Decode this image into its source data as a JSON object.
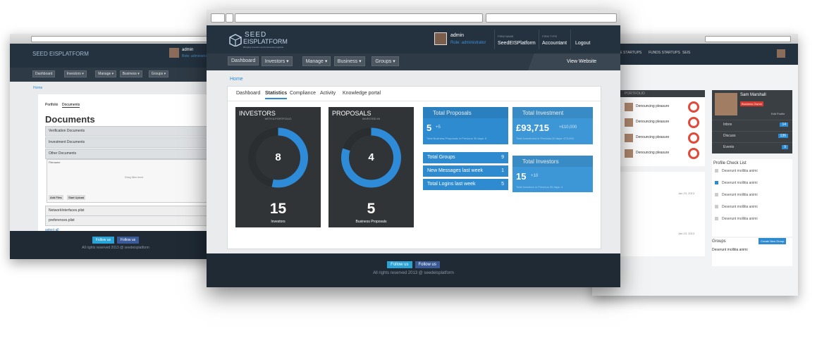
{
  "left": {
    "logo": "SEED EISPLATFORM",
    "user": "admin",
    "role": "Role: administrator",
    "nav": [
      "Dashboard",
      "Investors",
      "Manage",
      "Business",
      "Groups"
    ],
    "breadcrumb": "Home",
    "tabs": [
      "Portfolio",
      "Documents"
    ],
    "heading": "Documents",
    "sections": [
      "Verification Documents",
      "Investment Documents",
      "Other Documents"
    ],
    "filename": "Filename",
    "drop": "Drag files here.",
    "add_files": "Add Files",
    "start_upload": "Start Upload",
    "files": [
      "NetworkInterfaces.plist",
      "preferences.plist"
    ],
    "select_all": "select all",
    "footer": {
      "twitter": "Follow us",
      "facebook": "Follow us",
      "copyright": "All rights reserved 2013 @ seedeisplatform"
    }
  },
  "right": {
    "nav": [
      "SE STARTUPS",
      "FUNDS STARTUPS",
      "SEIS"
    ],
    "portfolio": "PORTFOLIO",
    "items": [
      "Denouncing pleasure",
      "Denouncing pleasure",
      "Denouncing pleasure",
      "Denouncing pleasure"
    ],
    "profile": {
      "name": "Sam Marshall",
      "role": "Business Owner",
      "edit": "Edit Profile",
      "links": [
        {
          "label": "Inbox",
          "count": "14"
        },
        {
          "label": "Discuss",
          "count": "136"
        },
        {
          "label": "Events",
          "count": "9"
        }
      ]
    },
    "checklist": {
      "title": "Profile Check List",
      "items": [
        "Deserunt mollitia animi",
        "Deserunt mollitia animi",
        "Deserunt mollitia animi",
        "Deserunt mollitia animi",
        "Deserunt mollitia animi"
      ]
    },
    "groups": {
      "title": "Groups",
      "button": "Create New Group",
      "item": "Deserunt mollitia animi"
    },
    "dates": [
      "Jan 23, 2013",
      "Jan 23, 2013"
    ]
  },
  "main": {
    "header": {
      "logo_top": "SEED",
      "logo_bottom": "EISPLATFORM",
      "tagline": "Bringing investors and businesses together",
      "user": "admin",
      "role": "Role: administrator",
      "firm_name_label": "FIRM NAME",
      "firm_name": "SeedEISPlatform",
      "firm_type_label": "FIRM TYPE",
      "firm_type": "Accountant",
      "logout": "Logout"
    },
    "nav": [
      "Dashboard",
      "Investors",
      "Manage",
      "Business",
      "Groups"
    ],
    "view_website": "View Website",
    "breadcrumb": "Home",
    "tabs": [
      "Dashboard",
      "Statistics",
      "Compliance",
      "Activity",
      "Knowledge portal"
    ],
    "cards": [
      {
        "title": "INVESTORS",
        "subtitle": "WITH A PORTFOLIO",
        "value": 8,
        "total": 15,
        "caption": "Investors"
      },
      {
        "title": "PROPOSALS",
        "subtitle": "INVESTED IN",
        "value": 4,
        "total": 5,
        "caption": "Business Proposals"
      }
    ],
    "proposals": {
      "title": "Total Proposals",
      "value": "5",
      "change": "+5",
      "note": "Total Business Proposals in Previous 30 days: 5"
    },
    "investment": {
      "title": "Total Investment",
      "value": "£93,715",
      "change": "+£10,000",
      "note": "Total Investment in Previous 30 days: £73,000"
    },
    "investors": {
      "title": "Total Investors",
      "value": "15",
      "change": "+10",
      "note": "Total Investors in Previous 30 days: 4"
    },
    "rows": [
      {
        "label": "Total Groups",
        "value": "9"
      },
      {
        "label": "New Messages last week",
        "value": "1"
      },
      {
        "label": "Total Logins last week",
        "value": "5"
      }
    ],
    "footer": {
      "twitter": "Follow us",
      "facebook": "Follow us",
      "copyright": "All rights reserved 2013 @ seedeisplatform"
    }
  }
}
